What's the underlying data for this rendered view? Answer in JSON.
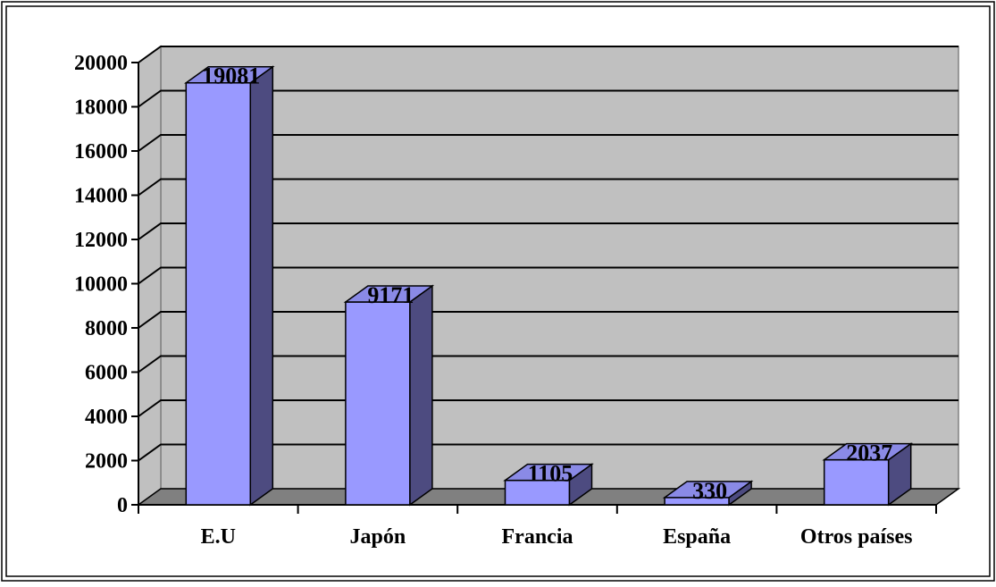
{
  "chart_data": {
    "type": "bar",
    "title": "",
    "xlabel": "",
    "ylabel": "",
    "categories": [
      "E.U",
      "Japón",
      "Francia",
      "España",
      "Otros países"
    ],
    "values": [
      19081,
      9171,
      1105,
      330,
      2037
    ],
    "data_labels": [
      "19081",
      "9171",
      "1105",
      "330",
      "2037"
    ],
    "ylim": [
      0,
      20000
    ],
    "yticks": [
      0,
      2000,
      4000,
      6000,
      8000,
      10000,
      12000,
      14000,
      16000,
      18000,
      20000
    ],
    "ytick_labels": [
      "0",
      "2000",
      "4000",
      "6000",
      "8000",
      "10000",
      "12000",
      "14000",
      "16000",
      "18000",
      "20000"
    ],
    "grid": true,
    "legend": "none",
    "style": "3d-column"
  },
  "colors": {
    "wall": "#c0c0c0",
    "floor": "#808080",
    "bar_front": "#9999ff",
    "bar_side": "#4d4b80",
    "bar_top": "#8a8ae6",
    "gridline": "#000000"
  }
}
